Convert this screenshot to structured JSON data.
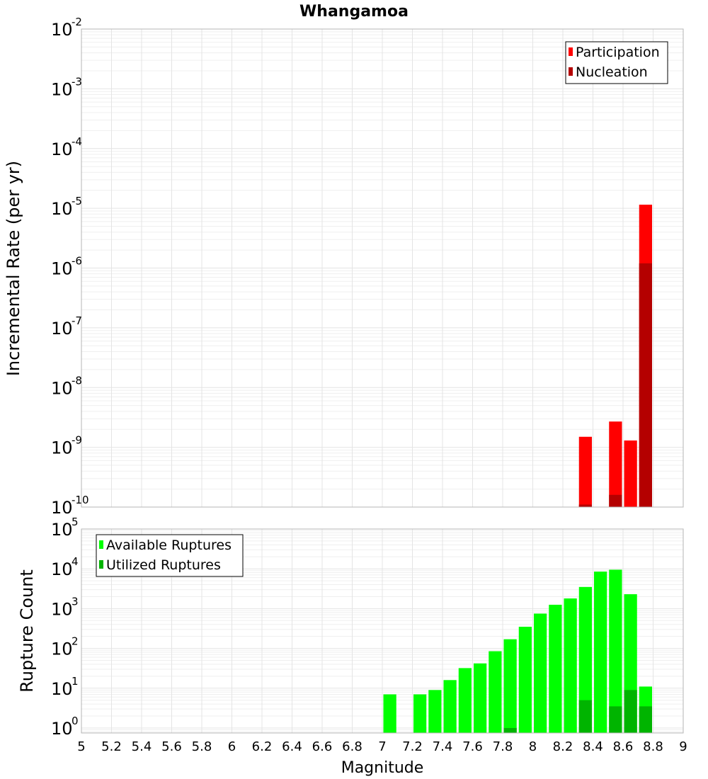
{
  "chart_data": [
    {
      "type": "bar",
      "title": "Whangamoa",
      "ylabel": "Incremental Rate (per yr)",
      "xlabel": "",
      "yscale": "log",
      "ylim": [
        1e-10,
        0.01
      ],
      "xlim": [
        5,
        9
      ],
      "bar_width": 0.1,
      "y_ticks": [
        {
          "base": "10",
          "exp": "-2",
          "value": 0.01
        },
        {
          "base": "10",
          "exp": "-3",
          "value": 0.001
        },
        {
          "base": "10",
          "exp": "-4",
          "value": 0.0001
        },
        {
          "base": "10",
          "exp": "-5",
          "value": 1e-05
        },
        {
          "base": "10",
          "exp": "-6",
          "value": 1e-06
        },
        {
          "base": "10",
          "exp": "-7",
          "value": 1e-07
        },
        {
          "base": "10",
          "exp": "-8",
          "value": 1e-08
        },
        {
          "base": "10",
          "exp": "-9",
          "value": 1e-09
        },
        {
          "base": "10",
          "exp": "-10",
          "value": 1e-10
        }
      ],
      "legend": {
        "position": "top-right",
        "entries": [
          "Participation",
          "Nucleation"
        ]
      },
      "series": [
        {
          "name": "Participation",
          "color": "#ff0000",
          "x": [
            8.35,
            8.55,
            8.65,
            8.75
          ],
          "values": [
            1.5e-09,
            2.7e-09,
            1.3e-09,
            1.15e-05
          ]
        },
        {
          "name": "Nucleation",
          "color": "#b40000",
          "x": [
            8.35,
            8.55,
            8.75
          ],
          "values": [
            1.1e-10,
            1.6e-10,
            1.2e-06
          ]
        }
      ]
    },
    {
      "type": "bar",
      "title": "",
      "ylabel": "Rupture Count",
      "xlabel": "Magnitude",
      "yscale": "log",
      "ylim": [
        0.75,
        100000
      ],
      "xlim": [
        5,
        9
      ],
      "bar_width": 0.1,
      "y_ticks": [
        {
          "base": "10",
          "exp": "5",
          "value": 100000
        },
        {
          "base": "10",
          "exp": "4",
          "value": 10000
        },
        {
          "base": "10",
          "exp": "3",
          "value": 1000
        },
        {
          "base": "10",
          "exp": "2",
          "value": 100
        },
        {
          "base": "10",
          "exp": "1",
          "value": 10
        },
        {
          "base": "10",
          "exp": "0",
          "value": 1
        }
      ],
      "x_ticks": [
        "5",
        "5.2",
        "5.4",
        "5.6",
        "5.8",
        "6",
        "6.2",
        "6.4",
        "6.6",
        "6.8",
        "7",
        "7.2",
        "7.4",
        "7.6",
        "7.8",
        "8",
        "8.2",
        "8.4",
        "8.6",
        "8.8",
        "9"
      ],
      "legend": {
        "position": "top-left",
        "entries": [
          "Available Ruptures",
          "Utilized Ruptures"
        ]
      },
      "series": [
        {
          "name": "Available Ruptures",
          "color": "#00ff00",
          "x": [
            7.05,
            7.25,
            7.35,
            7.45,
            7.55,
            7.65,
            7.75,
            7.85,
            7.95,
            8.05,
            8.15,
            8.25,
            8.35,
            8.45,
            8.55,
            8.65,
            8.75
          ],
          "values": [
            7,
            7,
            9,
            16,
            32,
            42,
            85,
            170,
            350,
            750,
            1250,
            1800,
            3500,
            8500,
            9500,
            2300,
            11
          ]
        },
        {
          "name": "Utilized Ruptures",
          "color": "#00b400",
          "x": [
            7.85,
            8.35,
            8.55,
            8.65,
            8.75
          ],
          "values": [
            1,
            5,
            3.5,
            9,
            3.5
          ]
        }
      ]
    }
  ]
}
